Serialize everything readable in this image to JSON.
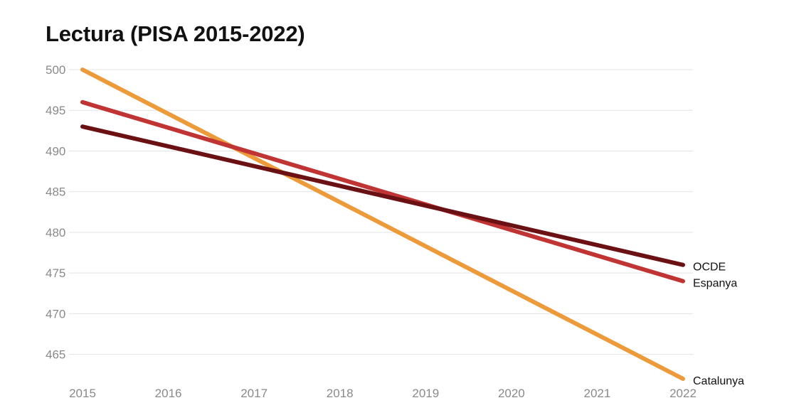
{
  "chart_data": {
    "type": "line",
    "title": "Lectura (PISA 2015-2022)",
    "xlabel": "",
    "ylabel": "",
    "x": [
      2015,
      2016,
      2017,
      2018,
      2019,
      2020,
      2021,
      2022
    ],
    "x_tick_labels": [
      "2015",
      "2016",
      "2017",
      "2018",
      "2019",
      "2020",
      "2021",
      "2022"
    ],
    "y_ticks": [
      465,
      470,
      475,
      480,
      485,
      490,
      495,
      500
    ],
    "y_tick_labels": [
      "465",
      "470",
      "475",
      "480",
      "485",
      "490",
      "495",
      "500"
    ],
    "ylim": [
      462,
      500
    ],
    "xlim": [
      2015,
      2022
    ],
    "grid": true,
    "legend": "direct labels at line ends (right)",
    "series": [
      {
        "name": "Catalunya",
        "color": "#ec9a3a",
        "points": [
          {
            "x": 2015,
            "y": 500
          },
          {
            "x": 2022,
            "y": 462
          }
        ]
      },
      {
        "name": "Espanya",
        "color": "#c03434",
        "points": [
          {
            "x": 2015,
            "y": 496
          },
          {
            "x": 2022,
            "y": 474
          }
        ]
      },
      {
        "name": "OCDE",
        "color": "#6b1114",
        "points": [
          {
            "x": 2015,
            "y": 493
          },
          {
            "x": 2022,
            "y": 476
          }
        ]
      }
    ]
  }
}
